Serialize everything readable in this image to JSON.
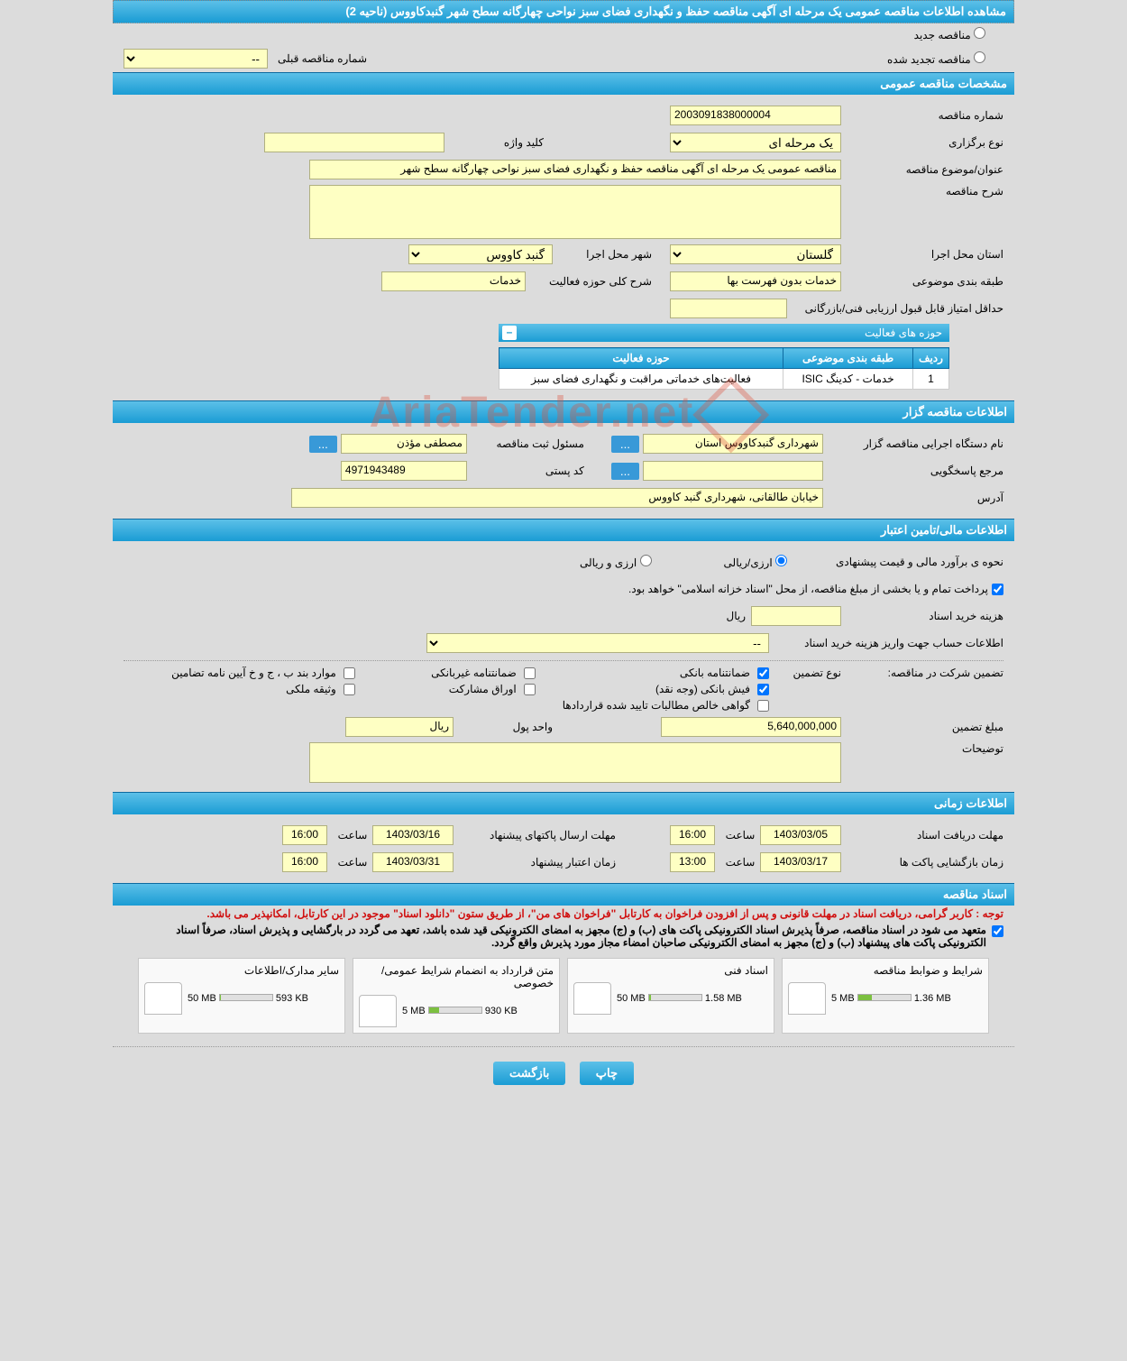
{
  "header": {
    "title": "مشاهده اطلاعات مناقصه عمومی یک مرحله ای آگهی مناقصه حفظ و نگهداری فضای سبز نواحی چهارگانه سطح شهر گنبدکاووس (ناحیه 2)"
  },
  "radios": {
    "new_tender": "مناقصه جدید",
    "renewed_tender": "مناقصه تجدید شده"
  },
  "prev_number": {
    "label": "شماره مناقصه قبلی",
    "value": "--"
  },
  "sections": {
    "general": "مشخصات مناقصه عمومی",
    "organizer": "اطلاعات مناقصه گزار",
    "financial": "اطلاعات مالی/تامین اعتبار",
    "timing": "اطلاعات زمانی",
    "documents": "اسناد مناقصه"
  },
  "general": {
    "tender_no_label": "شماره مناقصه",
    "tender_no": "2003091838000004",
    "type_label": "نوع برگزاری",
    "type_value": "یک مرحله ای",
    "keyword_label": "کلید واژه",
    "keyword_value": "",
    "subject_label": "عنوان/موضوع مناقصه",
    "subject_value": "مناقصه عمومی یک مرحله ای آگهی مناقصه حفظ و نگهداری فضای سبز نواحی چهارگانه سطح شهر",
    "description_label": "شرح مناقصه",
    "description_value": "",
    "province_label": "استان محل اجرا",
    "province_value": "گلستان",
    "city_label": "شهر محل اجرا",
    "city_value": "گنبد کاووس",
    "classification_label": "طبقه بندی موضوعی",
    "classification_value": "خدمات بدون فهرست بها",
    "activity_gen_label": "شرح کلی حوزه فعالیت",
    "activity_gen_value": "خدمات",
    "min_score_label": "حداقل امتیاز قابل قبول ارزیابی فنی/بازرگانی",
    "min_score_value": ""
  },
  "activity_table": {
    "title": "حوزه های فعالیت",
    "headers": {
      "row": "ردیف",
      "classification": "طبقه بندی موضوعی",
      "activity": "حوزه فعالیت"
    },
    "rows": [
      {
        "idx": "1",
        "classification": "خدمات - کدینگ ISIC",
        "activity": "فعالیت‌های خدماتی مراقبت و نگهداری فضای سبز"
      }
    ]
  },
  "organizer": {
    "exec_label": "نام دستگاه اجرایی مناقصه گزار",
    "exec_value": "شهرداری گنبدکاووس استان",
    "resp_reg_label": "مسئول ثبت مناقصه",
    "resp_reg_value": "مصطفی مؤذن",
    "resp_label": "مرجع پاسخگویی",
    "resp_value": "",
    "postal_label": "کد پستی",
    "postal_value": "4971943489",
    "address_label": "آدرس",
    "address_value": "خیابان طالقانی، شهرداری گنبد کاووس"
  },
  "financial": {
    "estimate_label": "نحوه ی برآورد مالی و قیمت پیشنهادی",
    "opt_rial": "ارزی/ریالی",
    "opt_foreign": "ارزی و ریالی",
    "payment_note": "پرداخت تمام و یا بخشی از مبلغ مناقصه، از محل \"اسناد خزانه اسلامی\" خواهد بود.",
    "doc_cost_label": "هزینه خرید اسناد",
    "doc_cost_value": "",
    "doc_cost_unit": "ریال",
    "account_label": "اطلاعات حساب جهت واریز هزینه خرید اسناد",
    "account_value": "--",
    "guarantee_label": "تضمین شرکت در مناقصه:",
    "guarantee_type_label": "نوع تضمین",
    "g_bank": "ضمانتنامه بانکی",
    "g_nonbank": "ضمانتنامه غیربانکی",
    "g_specific": "موارد بند ب ، ج و خ آیین نامه تضامین",
    "g_cash": "فیش بانکی (وجه نقد)",
    "g_bonds": "اوراق مشارکت",
    "g_property": "وثیقه ملکی",
    "g_certified": "گواهی خالص مطالبات تایید شده قراردادها",
    "amount_label": "مبلغ تضمین",
    "amount_value": "5,640,000,000",
    "unit_label": "واحد پول",
    "unit_value": "ریال",
    "explain_label": "توضیحات",
    "explain_value": ""
  },
  "timing": {
    "receive_label": "مهلت دریافت اسناد",
    "receive_date": "1403/03/05",
    "receive_time_label": "ساعت",
    "receive_time": "16:00",
    "send_label": "مهلت ارسال پاکتهای پیشنهاد",
    "send_date": "1403/03/16",
    "send_time_label": "ساعت",
    "send_time": "16:00",
    "open_label": "زمان بازگشایی پاکت ها",
    "open_date": "1403/03/17",
    "open_time_label": "ساعت",
    "open_time": "13:00",
    "validity_label": "زمان اعتبار پیشنهاد",
    "validity_date": "1403/03/31",
    "validity_time_label": "ساعت",
    "validity_time": "16:00"
  },
  "documents": {
    "note1": "توجه : کاربر گرامی، دریافت اسناد در مهلت قانونی و پس از افزودن فراخوان به کارتابل \"فراخوان های من\"، از طریق ستون \"دانلود اسناد\" موجود در این کارتابل، امکانپذیر می باشد.",
    "note2": "متعهد می شود در اسناد مناقصه، صرفاً پذیرش اسناد الکترونیکی پاکت های (ب) و (ج) مجهز به امضای الکترونیکی قید شده باشد، تعهد می گردد در بارگشایی و پذیرش اسناد، صرفاً اسناد الکترونیکی پاکت های پیشنهاد (ب) و (ج) مجهز به امضای الکترونیکی صاحبان امضاء مجاز مورد پذیرش واقع گردد.",
    "files": [
      {
        "title": "شرایط و ضوابط مناقصه",
        "size": "1.36 MB",
        "quota": "5 MB",
        "fill_pct": 27
      },
      {
        "title": "اسناد فنی",
        "size": "1.58 MB",
        "quota": "50 MB",
        "fill_pct": 4
      },
      {
        "title": "متن قرارداد به انضمام شرایط عمومی/خصوصی",
        "size": "930 KB",
        "quota": "5 MB",
        "fill_pct": 19
      },
      {
        "title": "سایر مدارک/اطلاعات",
        "size": "593 KB",
        "quota": "50 MB",
        "fill_pct": 2
      }
    ]
  },
  "buttons": {
    "print": "چاپ",
    "back": "بازگشت",
    "dots": "..."
  },
  "watermark": "AriaTender.net"
}
